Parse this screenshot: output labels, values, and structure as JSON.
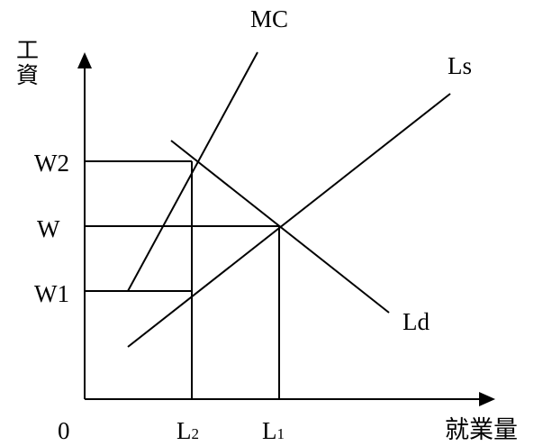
{
  "axes": {
    "y_label_char1": "工",
    "y_label_char2": "資",
    "x_label": "就業量",
    "origin": "0"
  },
  "curves": {
    "mc": "MC",
    "supply": "Ls",
    "demand": "Ld"
  },
  "wage_levels": {
    "w2": "W2",
    "w": "W",
    "w1": "W1"
  },
  "employment_levels": {
    "l2": "L2",
    "l1": "L1"
  }
}
